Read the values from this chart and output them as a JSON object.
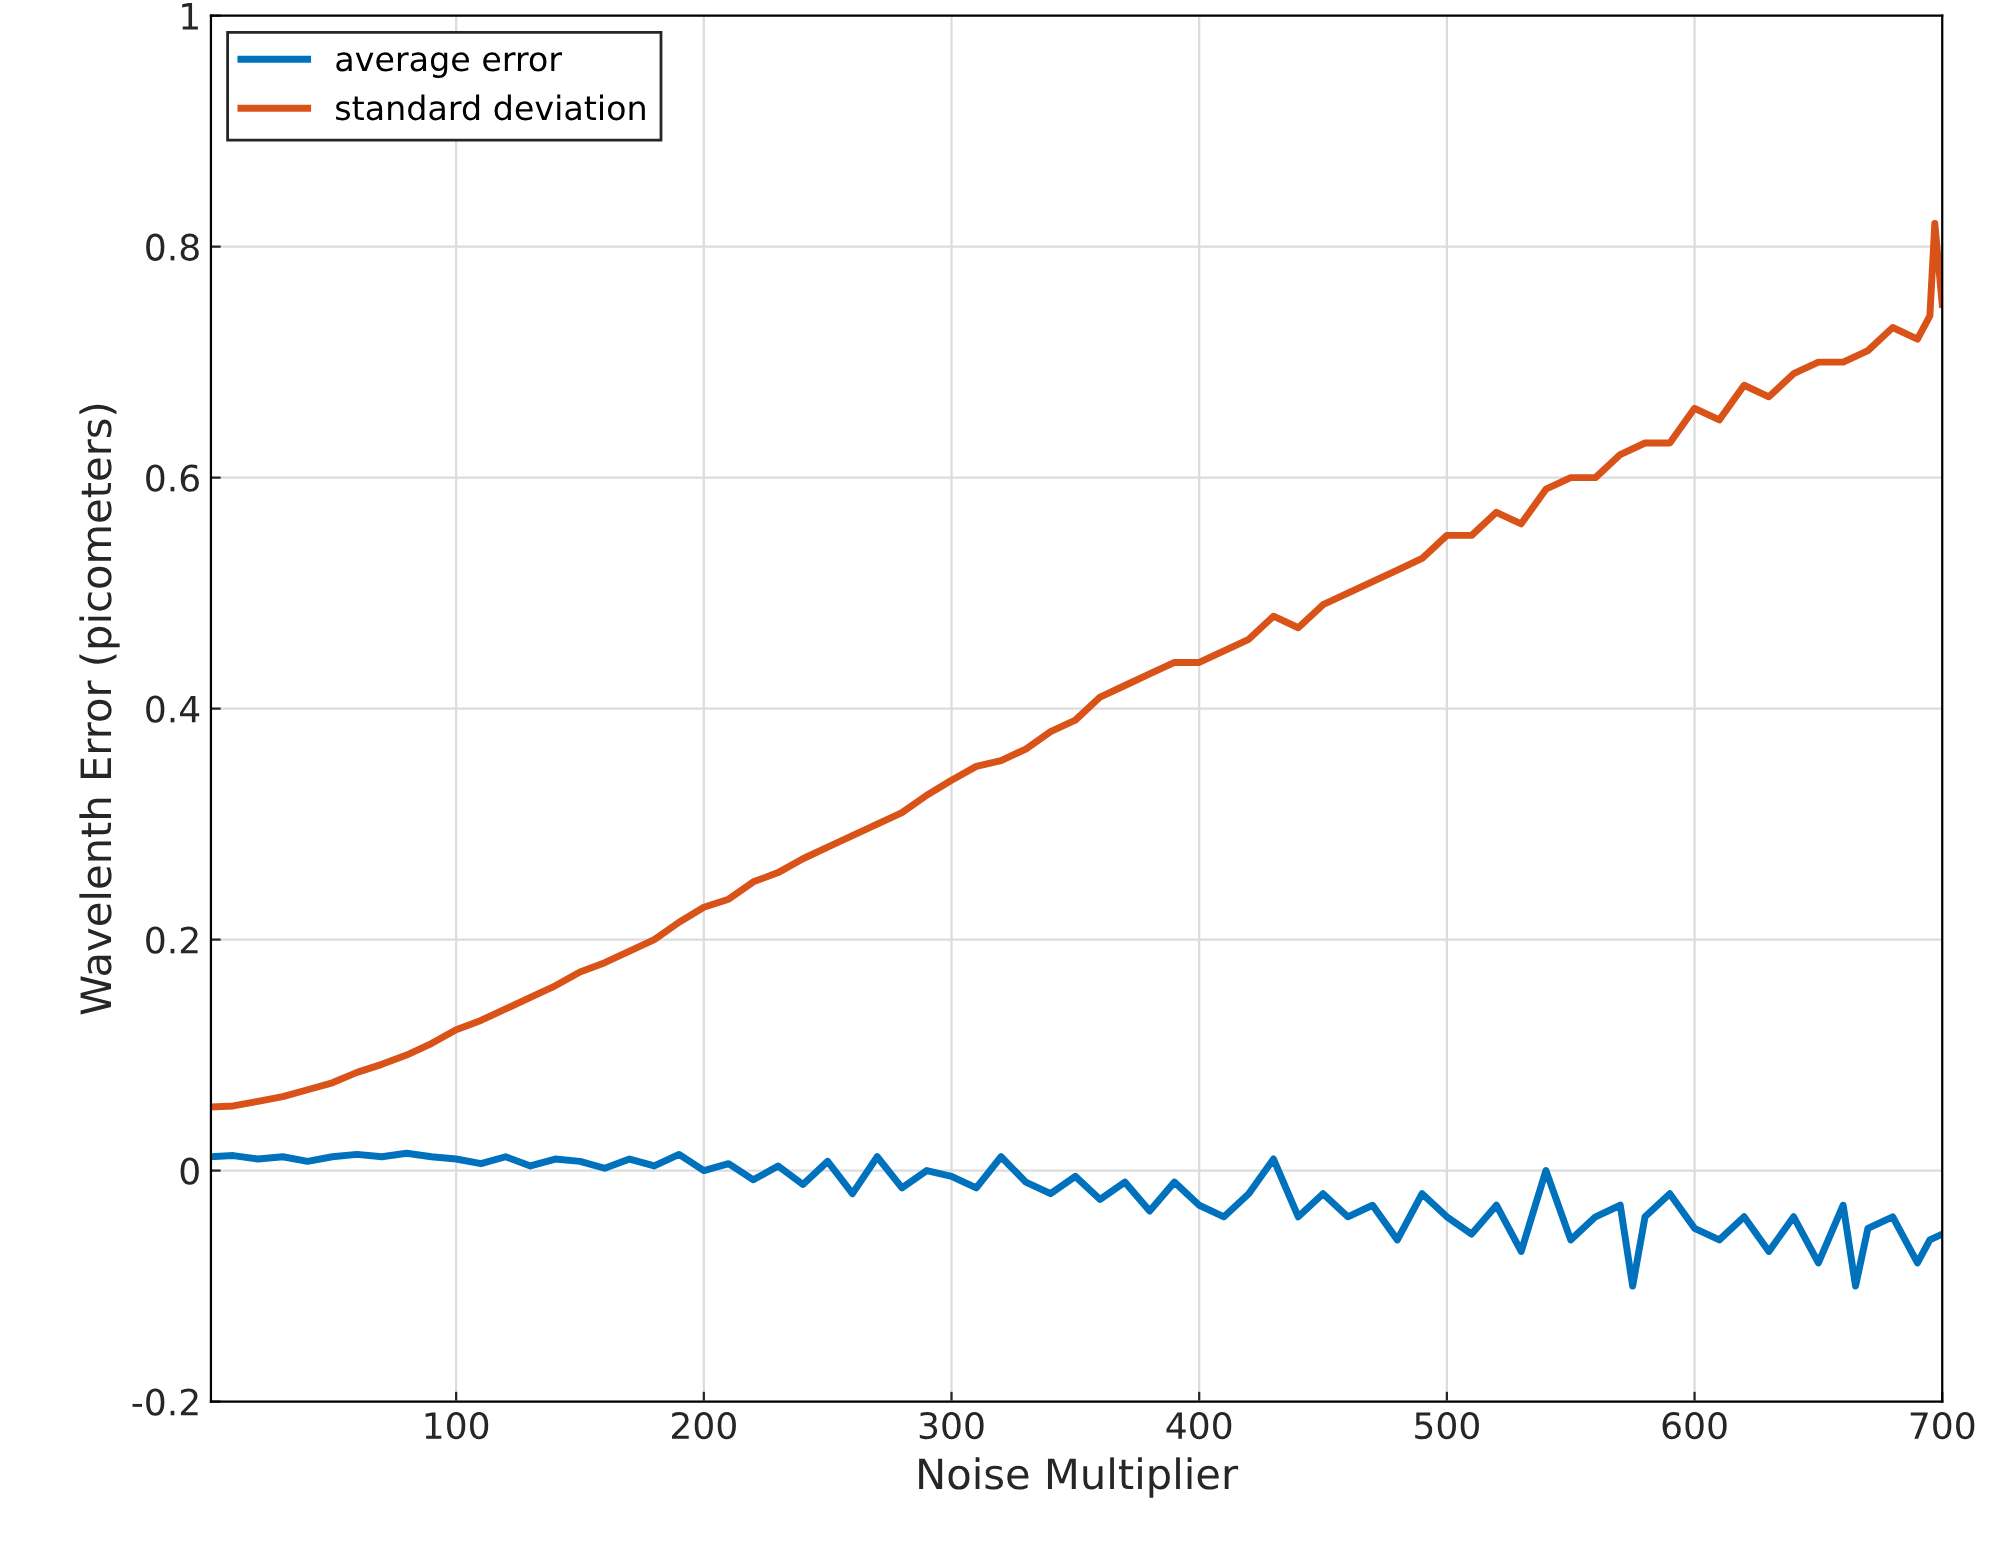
{
  "chart_data": {
    "type": "line",
    "xlabel": "Noise Multiplier",
    "ylabel": "Wavelenth Error (picometers)",
    "xlim": [
      1,
      700
    ],
    "xticks": [
      100,
      200,
      300,
      400,
      500,
      600,
      700
    ],
    "ylim": [
      -0.2,
      1
    ],
    "yticks": [
      -0.2,
      0,
      0.2,
      0.4,
      0.6,
      0.8,
      1
    ],
    "grid": true,
    "legend": "top left",
    "line_style": "solid",
    "marker": "none",
    "series": [
      {
        "name": "average error",
        "color": "#0072bd",
        "x": [
          1,
          10,
          20,
          30,
          40,
          50,
          60,
          70,
          80,
          90,
          100,
          110,
          120,
          130,
          140,
          150,
          160,
          170,
          180,
          190,
          200,
          210,
          220,
          230,
          240,
          250,
          260,
          270,
          280,
          290,
          300,
          310,
          320,
          330,
          340,
          350,
          360,
          370,
          380,
          390,
          400,
          410,
          420,
          430,
          440,
          450,
          460,
          470,
          480,
          490,
          500,
          510,
          520,
          530,
          540,
          550,
          560,
          570,
          575,
          580,
          590,
          600,
          610,
          620,
          630,
          640,
          650,
          660,
          665,
          670,
          680,
          690,
          695,
          700
        ],
        "values": [
          0.012,
          0.013,
          0.01,
          0.012,
          0.008,
          0.012,
          0.014,
          0.012,
          0.015,
          0.012,
          0.01,
          0.006,
          0.012,
          0.004,
          0.01,
          0.008,
          0.002,
          0.01,
          0.004,
          0.014,
          0.0,
          0.006,
          -0.008,
          0.004,
          -0.012,
          0.008,
          -0.02,
          0.012,
          -0.015,
          0.0,
          -0.005,
          -0.015,
          0.012,
          -0.01,
          -0.02,
          -0.005,
          -0.025,
          -0.01,
          -0.035,
          -0.01,
          -0.03,
          -0.04,
          -0.02,
          0.01,
          -0.04,
          -0.02,
          -0.04,
          -0.03,
          -0.06,
          -0.02,
          -0.04,
          -0.055,
          -0.03,
          -0.07,
          0.0,
          -0.06,
          -0.04,
          -0.03,
          -0.1,
          -0.04,
          -0.02,
          -0.05,
          -0.06,
          -0.04,
          -0.07,
          -0.04,
          -0.08,
          -0.03,
          -0.1,
          -0.05,
          -0.04,
          -0.08,
          -0.06,
          -0.055
        ]
      },
      {
        "name": "standard deviation",
        "color": "#d95319",
        "x": [
          1,
          10,
          20,
          30,
          40,
          50,
          60,
          70,
          80,
          90,
          100,
          110,
          120,
          130,
          140,
          150,
          160,
          170,
          180,
          190,
          200,
          210,
          220,
          230,
          240,
          250,
          260,
          270,
          280,
          290,
          300,
          310,
          320,
          330,
          340,
          350,
          360,
          370,
          380,
          390,
          400,
          410,
          420,
          430,
          440,
          450,
          460,
          470,
          480,
          490,
          500,
          510,
          520,
          530,
          540,
          550,
          560,
          570,
          580,
          590,
          600,
          610,
          620,
          630,
          640,
          650,
          660,
          670,
          680,
          690,
          695,
          697,
          700
        ],
        "values": [
          0.055,
          0.056,
          0.06,
          0.064,
          0.07,
          0.076,
          0.085,
          0.092,
          0.1,
          0.11,
          0.122,
          0.13,
          0.14,
          0.15,
          0.16,
          0.172,
          0.18,
          0.19,
          0.2,
          0.215,
          0.228,
          0.235,
          0.25,
          0.258,
          0.27,
          0.28,
          0.29,
          0.3,
          0.31,
          0.325,
          0.338,
          0.35,
          0.355,
          0.365,
          0.38,
          0.39,
          0.41,
          0.42,
          0.43,
          0.44,
          0.44,
          0.45,
          0.46,
          0.48,
          0.47,
          0.49,
          0.5,
          0.51,
          0.52,
          0.53,
          0.55,
          0.55,
          0.57,
          0.56,
          0.59,
          0.6,
          0.6,
          0.62,
          0.63,
          0.63,
          0.66,
          0.65,
          0.68,
          0.67,
          0.69,
          0.7,
          0.7,
          0.71,
          0.73,
          0.72,
          0.74,
          0.82,
          0.75
        ]
      }
    ]
  }
}
